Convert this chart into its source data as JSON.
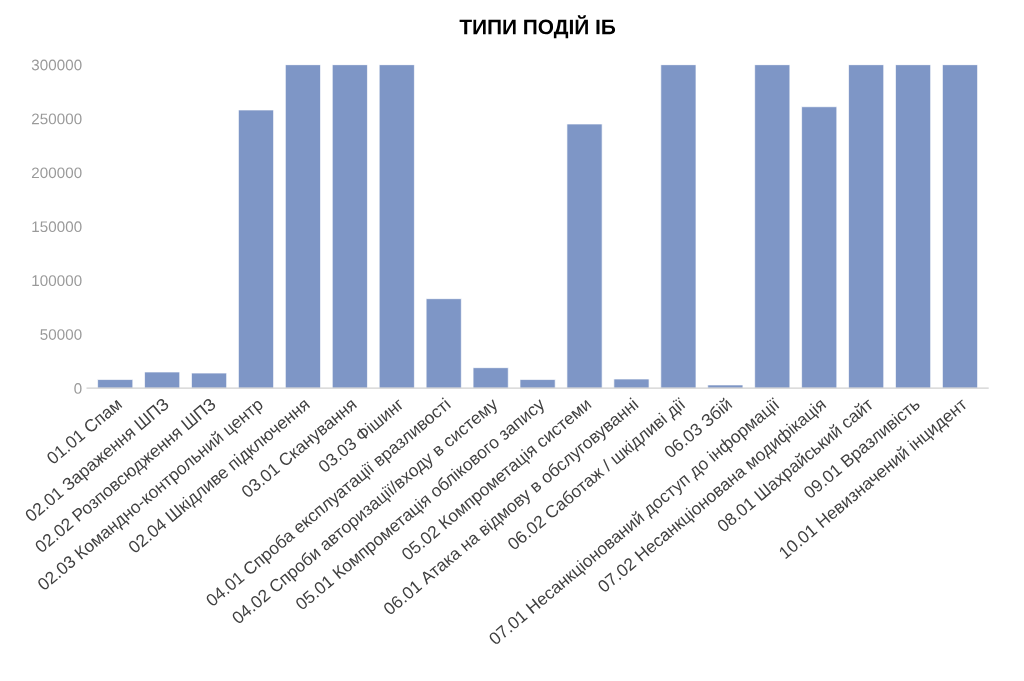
{
  "chart_data": {
    "type": "bar",
    "title": "ТИПИ ПОДІЙ ІБ",
    "categories": [
      "01.01 Спам",
      "02.01 Зараження ШПЗ",
      "02.02 Розповсюдження ШПЗ",
      "02.03 Командно-контрольний центр",
      "02.04 Шкідливе підключення",
      "03.01 Сканування",
      "03.03 Фішинг",
      "04.01 Спроба експлуатації вразливості",
      "04.02 Спроби авторизації/входу в систему",
      "05.01 Компрометація облікового запису",
      "05.02 Компрометація системи",
      "06.01 Атака на відмову в обслуговуванні",
      "06.02 Саботаж / шкідливі дії",
      "06.03 Збій",
      "07.01 Несанкціонований доступ до інформації",
      "07.02 Несанкціонована модифікація",
      "08.01 Шахрайський сайт",
      "09.01 Вразливість",
      "10.01 Невизначений інцидент"
    ],
    "values": [
      8000,
      15000,
      14000,
      258000,
      300000,
      300000,
      300000,
      83000,
      19000,
      8000,
      245000,
      8500,
      300000,
      3000,
      300000,
      261000,
      300000,
      300000,
      300000
    ],
    "color": "#7e96c6",
    "ylim": [
      0,
      300000
    ],
    "yticks": [
      0,
      50000,
      100000,
      150000,
      200000,
      250000,
      300000
    ],
    "grid": false
  }
}
